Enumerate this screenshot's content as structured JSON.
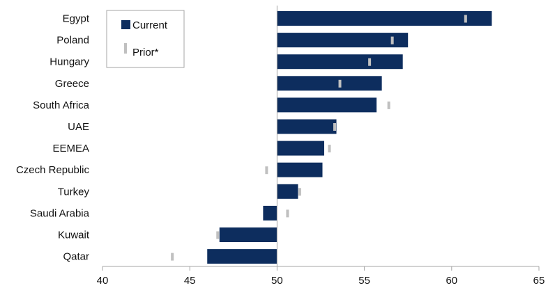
{
  "chart_data": {
    "type": "bar",
    "orientation": "horizontal",
    "baseline": 50,
    "xlim": [
      40,
      65
    ],
    "xticks": [
      40,
      45,
      50,
      55,
      60,
      65
    ],
    "categories": [
      "Egypt",
      "Poland",
      "Hungary",
      "Greece",
      "South Africa",
      "UAE",
      "EEMEA",
      "Czech Republic",
      "Turkey",
      "Saudi Arabia",
      "Kuwait",
      "Qatar"
    ],
    "series": [
      {
        "name": "Current",
        "mark": "bar",
        "color": "#0d2d5e",
        "values": [
          62.3,
          57.5,
          57.2,
          56.0,
          55.7,
          53.4,
          52.7,
          52.6,
          51.2,
          49.2,
          46.7,
          46.0
        ]
      },
      {
        "name": "Prior*",
        "mark": "tick",
        "color": "#c0c0c0",
        "values": [
          60.8,
          56.6,
          55.3,
          53.6,
          56.4,
          53.3,
          53.0,
          49.4,
          51.3,
          50.6,
          46.6,
          44.0
        ]
      }
    ],
    "legend": {
      "placement": "top-left"
    },
    "grid": false
  }
}
